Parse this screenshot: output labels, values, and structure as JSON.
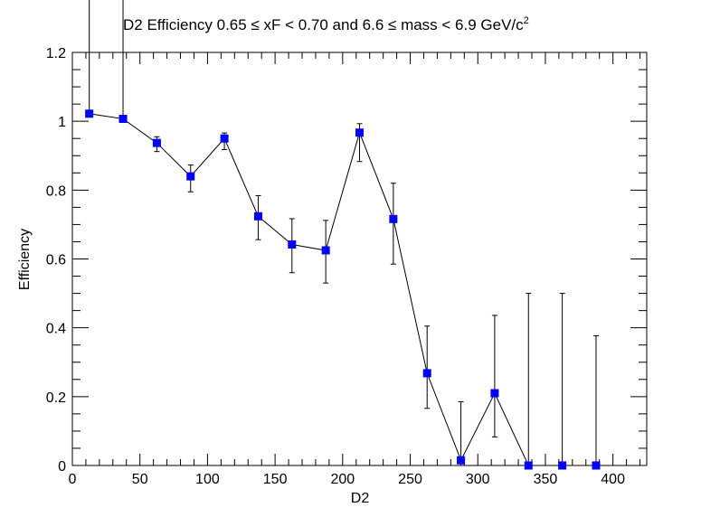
{
  "chart_data": {
    "type": "scatter",
    "title_main": "D2 Efficiency 0.65  ",
    "title_mid": "≤ xF < 0.70 and 6.6  ",
    "title_end": "≤ mass < 6.9 GeV/c",
    "title_sup": "2",
    "xlabel": "D2",
    "ylabel": "Efficiency",
    "xlim": [
      0,
      425
    ],
    "ylim": [
      0,
      1.2
    ],
    "x_ticks": [
      0,
      50,
      100,
      150,
      200,
      250,
      300,
      350,
      400
    ],
    "x_tick_labels": [
      "0",
      "50",
      "100",
      "150",
      "200",
      "250",
      "300",
      "350",
      "400"
    ],
    "y_ticks": [
      0,
      0.2,
      0.4,
      0.6,
      0.8,
      1.0,
      1.2
    ],
    "y_tick_labels": [
      "0",
      "0.2",
      "0.4",
      "0.6",
      "0.8",
      "1",
      "1.2"
    ],
    "marker_color": "#0000ff",
    "line_color": "#000000",
    "points": [
      {
        "x": 12.5,
        "y": 1.022,
        "err_low": 1.022,
        "err_high": 1.4
      },
      {
        "x": 37.5,
        "y": 1.007,
        "err_low": 1.007,
        "err_high": 1.4
      },
      {
        "x": 62.5,
        "y": 0.937,
        "err_low": 0.912,
        "err_high": 0.955
      },
      {
        "x": 87.5,
        "y": 0.84,
        "err_low": 0.795,
        "err_high": 0.873
      },
      {
        "x": 112.5,
        "y": 0.95,
        "err_low": 0.918,
        "err_high": 0.966
      },
      {
        "x": 137.5,
        "y": 0.724,
        "err_low": 0.656,
        "err_high": 0.784
      },
      {
        "x": 162.5,
        "y": 0.642,
        "err_low": 0.56,
        "err_high": 0.717
      },
      {
        "x": 187.5,
        "y": 0.625,
        "err_low": 0.53,
        "err_high": 0.712
      },
      {
        "x": 212.5,
        "y": 0.967,
        "err_low": 0.883,
        "err_high": 0.993
      },
      {
        "x": 237.5,
        "y": 0.716,
        "err_low": 0.585,
        "err_high": 0.82
      },
      {
        "x": 262.5,
        "y": 0.268,
        "err_low": 0.166,
        "err_high": 0.405
      },
      {
        "x": 287.5,
        "y": 0.015,
        "err_low": 0.0,
        "err_high": 0.185
      },
      {
        "x": 312.5,
        "y": 0.21,
        "err_low": 0.083,
        "err_high": 0.436
      },
      {
        "x": 337.5,
        "y": 0.0,
        "err_low": 0.0,
        "err_high": 0.5
      },
      {
        "x": 362.5,
        "y": 0.0,
        "err_low": 0.0,
        "err_high": 0.5
      },
      {
        "x": 387.5,
        "y": 0.0,
        "err_low": 0.0,
        "err_high": 0.377
      }
    ]
  }
}
